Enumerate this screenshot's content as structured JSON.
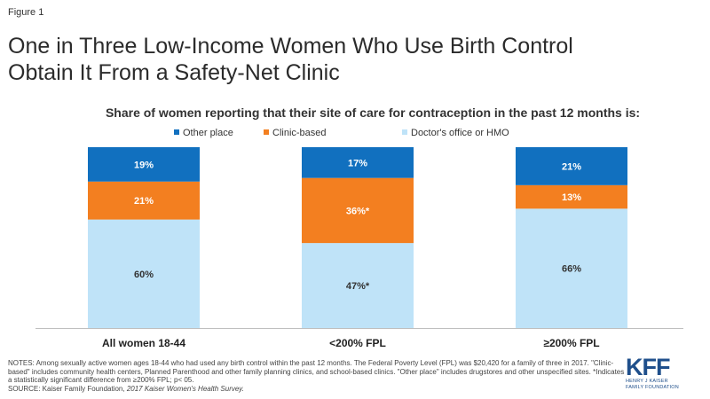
{
  "figure_label": "Figure 1",
  "title": "One in Three Low-Income Women Who Use Birth Control Obtain It From a Safety-Net Clinic",
  "colors": {
    "other_place": "#1170bf",
    "clinic_based": "#f37f20",
    "doctors_office": "#bfe3f8"
  },
  "chart_data": {
    "type": "bar",
    "stacked": true,
    "subtitle": "Share of women reporting that their site of care for contraception in the past 12 months is:",
    "categories": [
      "All women 18-44",
      "<200% FPL",
      "≥200% FPL"
    ],
    "series": [
      {
        "name": "Doctor's office or HMO",
        "values": [
          60,
          47,
          66
        ],
        "labels": [
          "60%",
          "47%*",
          "66%"
        ]
      },
      {
        "name": "Clinic-based",
        "values": [
          21,
          36,
          13
        ],
        "labels": [
          "21%",
          "36%*",
          "13%"
        ]
      },
      {
        "name": "Other place",
        "values": [
          19,
          17,
          21
        ],
        "labels": [
          "19%",
          "17%",
          "21%"
        ]
      }
    ],
    "legend_order": [
      "Other place",
      "Clinic-based",
      "Doctor's office or HMO"
    ],
    "legend_position": "top",
    "ylim": [
      0,
      100
    ],
    "grid": false
  },
  "notes": {
    "line1": "NOTES: Among sexually active women ages 18-44 who had used any birth control within the past 12 months. The Federal Poverty Level (FPL) was $20,420 for a family of three in 2017. \"Clinic-based\" includes community health centers, Planned Parenthood and other family planning clinics, and school-based clinics. \"Other place\" includes drugstores and other unspecified sites. *Indicates a statistically significant difference from ≥200% FPL; p< 05.",
    "source_prefix": "SOURCE: Kaiser Family Foundation, ",
    "source_italic": "2017 Kaiser Women's Health Survey."
  },
  "logo": {
    "main": "KFF",
    "sub_line1": "HENRY J KAISER",
    "sub_line2": "FAMILY FOUNDATION"
  }
}
